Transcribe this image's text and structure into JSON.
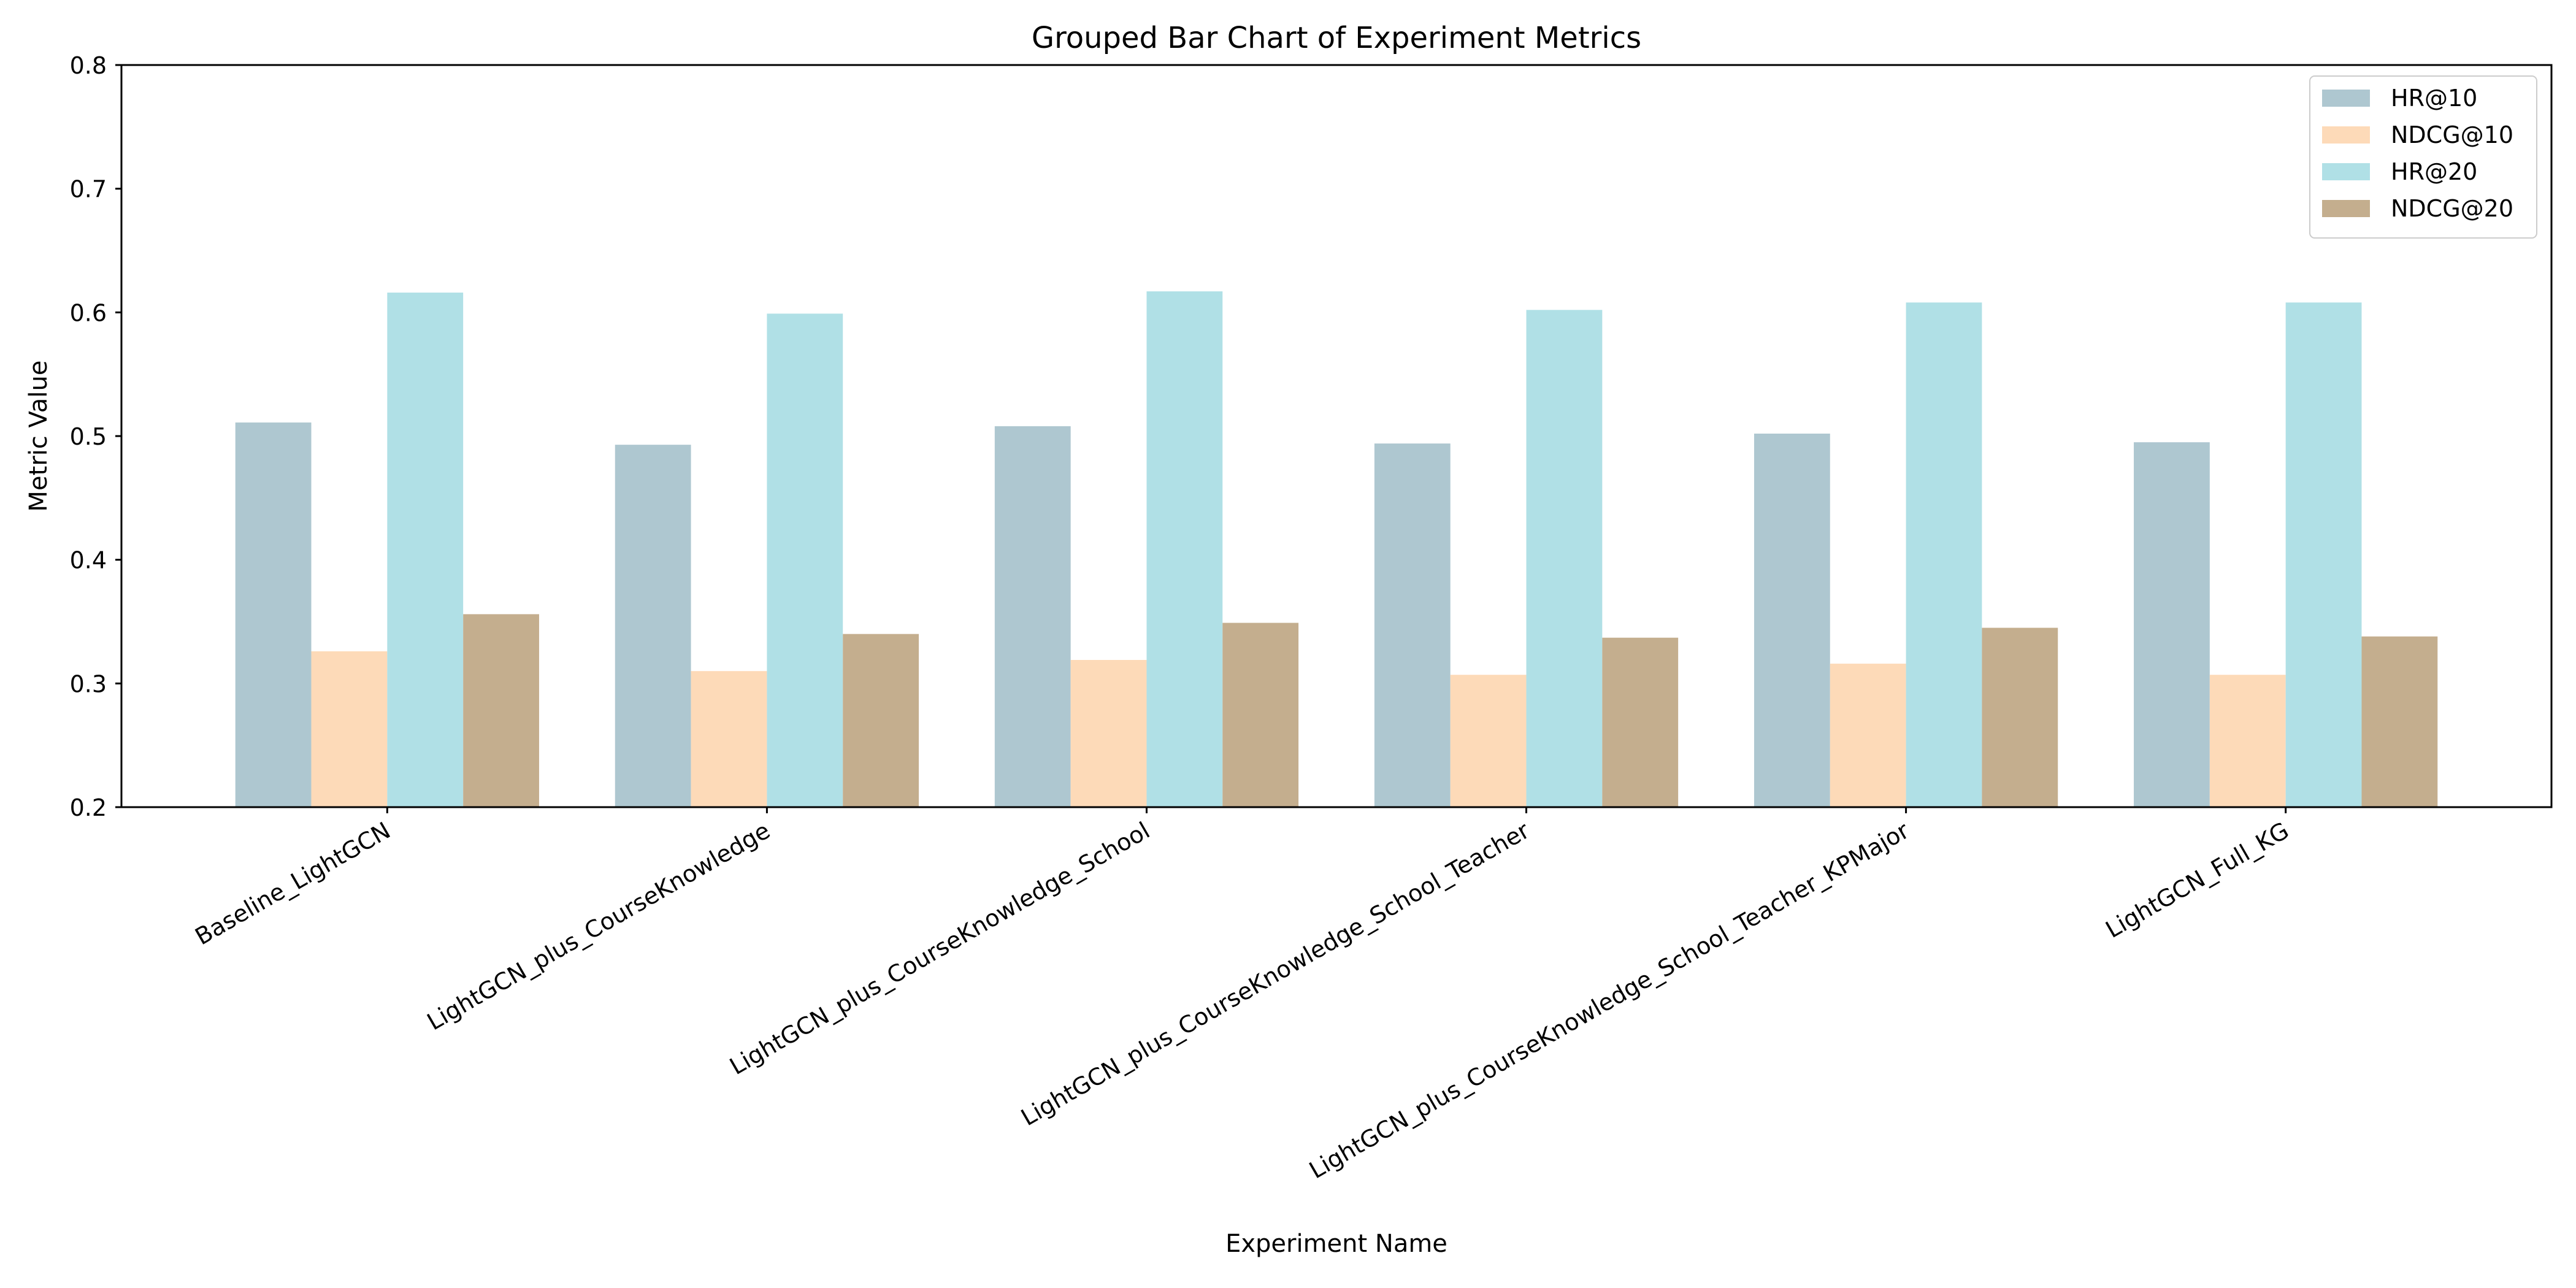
{
  "chart_data": {
    "type": "bar",
    "title": "Grouped Bar Chart of Experiment Metrics",
    "xlabel": "Experiment Name",
    "ylabel": "Metric Value",
    "ylim": [
      0.2,
      0.8
    ],
    "yticks": [
      "0.2",
      "0.3",
      "0.4",
      "0.5",
      "0.6",
      "0.7",
      "0.8"
    ],
    "grid": false,
    "legend_position": "top-right",
    "categories": [
      "Baseline_LightGCN",
      "LightGCN_plus_CourseKnowledge",
      "LightGCN_plus_CourseKnowledge_School",
      "LightGCN_plus_CourseKnowledge_School_Teacher",
      "LightGCN_plus_CourseKnowledge_School_Teacher_KPMajor",
      "LightGCN_Full_KG"
    ],
    "series": [
      {
        "name": "HR@10",
        "color": "#aec7d0",
        "values": [
          0.511,
          0.493,
          0.508,
          0.494,
          0.502,
          0.495
        ]
      },
      {
        "name": "NDCG@10",
        "color": "#fddab8",
        "values": [
          0.326,
          0.31,
          0.319,
          0.307,
          0.316,
          0.307
        ]
      },
      {
        "name": "HR@20",
        "color": "#b0e0e6",
        "values": [
          0.616,
          0.599,
          0.617,
          0.602,
          0.608,
          0.608
        ]
      },
      {
        "name": "NDCG@20",
        "color": "#c4ae8e",
        "values": [
          0.356,
          0.34,
          0.349,
          0.337,
          0.345,
          0.338
        ]
      }
    ]
  }
}
